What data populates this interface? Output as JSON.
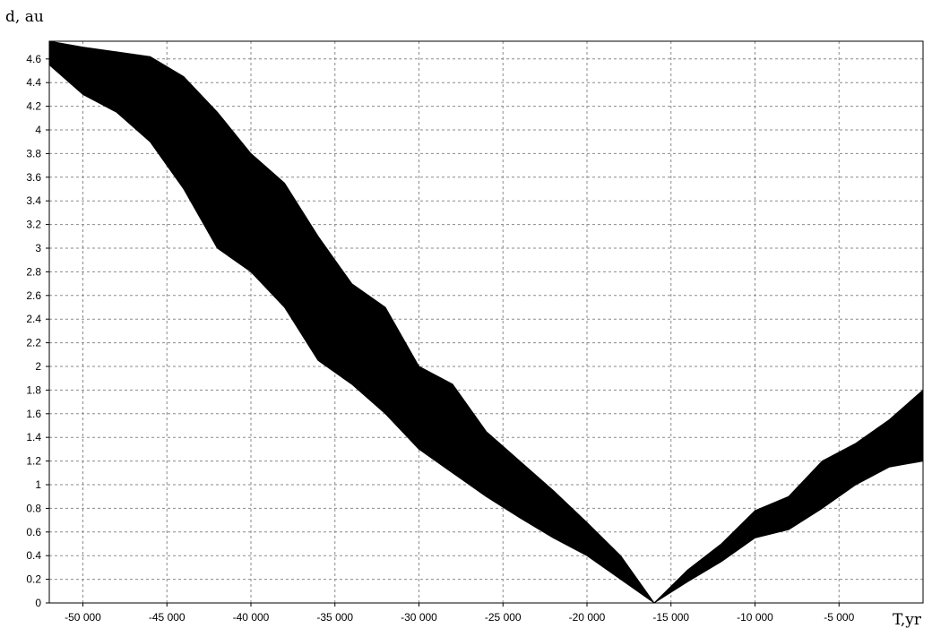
{
  "chart_data": {
    "type": "area",
    "ylabel": "d, au",
    "xlabel": "T,yr",
    "xlim": [
      -52000,
      0
    ],
    "ylim": [
      0,
      4.75
    ],
    "x_ticks": [
      -50000,
      -45000,
      -40000,
      -35000,
      -30000,
      -25000,
      -20000,
      -15000,
      -10000,
      -5000
    ],
    "x_tick_labels": [
      "-50 000",
      "-45 000",
      "-40 000",
      "-35 000",
      "-30 000",
      "-25 000",
      "-20 000",
      "-15 000",
      "-10 000",
      "-5 000"
    ],
    "y_ticks": [
      0,
      0.2,
      0.4,
      0.6,
      0.8,
      1,
      1.2,
      1.4,
      1.6,
      1.8,
      2,
      2.2,
      2.4,
      2.6,
      2.8,
      3,
      3.2,
      3.4,
      3.6,
      3.8,
      4,
      4.2,
      4.4,
      4.6
    ],
    "y_tick_labels": [
      "0",
      "0.2",
      "0.4",
      "0.6",
      "0.8",
      "1",
      "1.2",
      "1.4",
      "1.6",
      "1.8",
      "2",
      "2.2",
      "2.4",
      "2.6",
      "2.8",
      "3",
      "3.2",
      "3.4",
      "3.6",
      "3.8",
      "4",
      "4.2",
      "4.4",
      "4.6"
    ],
    "grid": true,
    "fill_color": "#000000",
    "band": {
      "x": [
        -52000,
        -50000,
        -48000,
        -46000,
        -44000,
        -42000,
        -40000,
        -38000,
        -36000,
        -34000,
        -32000,
        -30000,
        -28000,
        -26000,
        -24000,
        -22000,
        -20000,
        -18000,
        -16000,
        -14000,
        -12000,
        -10000,
        -8000,
        -6000,
        -4000,
        -2000,
        0
      ],
      "upper": [
        4.75,
        4.7,
        4.66,
        4.62,
        4.45,
        4.15,
        3.8,
        3.55,
        3.1,
        2.7,
        2.5,
        2.0,
        1.85,
        1.45,
        1.2,
        0.95,
        0.68,
        0.4,
        0.0,
        0.28,
        0.5,
        0.78,
        0.9,
        1.2,
        1.35,
        1.55,
        1.8
      ],
      "lower": [
        4.55,
        4.3,
        4.15,
        3.9,
        3.5,
        3.0,
        2.8,
        2.5,
        2.05,
        1.85,
        1.6,
        1.3,
        1.1,
        0.9,
        0.72,
        0.55,
        0.4,
        0.2,
        0.0,
        0.18,
        0.35,
        0.55,
        0.62,
        0.8,
        1.0,
        1.15,
        1.2
      ]
    }
  }
}
